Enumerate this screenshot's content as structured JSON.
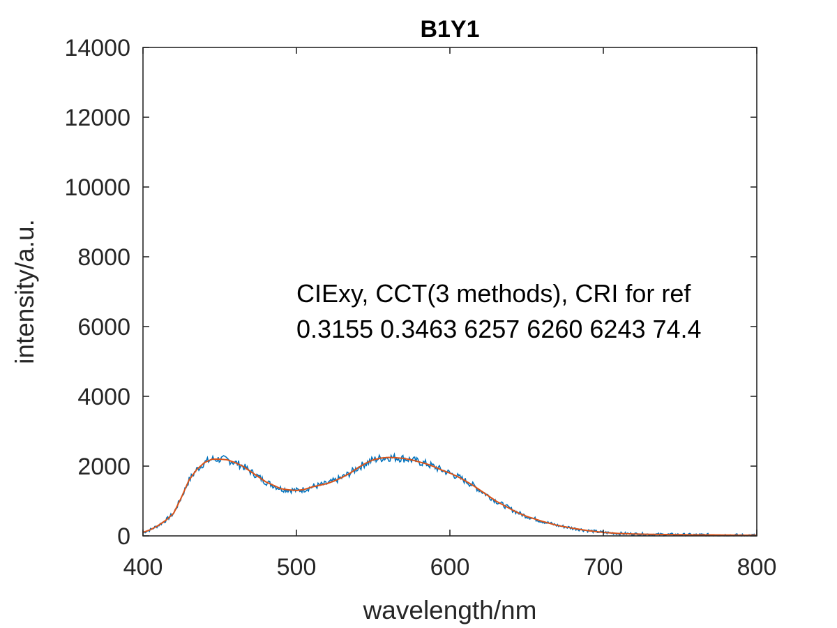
{
  "chart_data": {
    "type": "line",
    "title": "B1Y1",
    "xlabel": "wavelength/nm",
    "ylabel": "intensity/a.u.",
    "xlim": [
      400,
      800
    ],
    "ylim": [
      0,
      14000
    ],
    "xticks": [
      "400",
      "500",
      "600",
      "700",
      "800"
    ],
    "yticks": [
      "0",
      "2000",
      "4000",
      "6000",
      "8000",
      "10000",
      "12000",
      "14000"
    ],
    "grid": false,
    "annotation": {
      "line1": "CIExy, CCT(3 methods), CRI for ref",
      "line2": "0.3155 0.3463 6257 6260 6243 74.4"
    },
    "series": [
      {
        "color": "#0072BD",
        "style": "noisy",
        "x": [
          400,
          405,
          410,
          415,
          420,
          425,
          430,
          435,
          440,
          445,
          450,
          455,
          460,
          465,
          470,
          475,
          480,
          485,
          490,
          495,
          500,
          505,
          510,
          515,
          520,
          525,
          530,
          535,
          540,
          545,
          550,
          555,
          560,
          565,
          570,
          575,
          580,
          585,
          590,
          595,
          600,
          605,
          610,
          615,
          620,
          625,
          630,
          635,
          640,
          645,
          650,
          660,
          670,
          680,
          690,
          700,
          710,
          720,
          730,
          740,
          750,
          760,
          770,
          780,
          790,
          800
        ],
        "y": [
          100,
          180,
          300,
          450,
          650,
          1100,
          1600,
          1900,
          2100,
          2200,
          2200,
          2180,
          2100,
          2000,
          1850,
          1700,
          1550,
          1450,
          1350,
          1320,
          1300,
          1330,
          1400,
          1450,
          1500,
          1580,
          1680,
          1800,
          1950,
          2080,
          2180,
          2230,
          2250,
          2240,
          2220,
          2180,
          2120,
          2060,
          1980,
          1880,
          1800,
          1700,
          1580,
          1450,
          1300,
          1150,
          1000,
          880,
          760,
          650,
          560,
          420,
          300,
          220,
          150,
          100,
          70,
          55,
          45,
          40,
          35,
          30,
          30,
          25,
          20,
          20
        ]
      },
      {
        "color": "#D95319",
        "style": "smooth",
        "x": [
          400,
          405,
          410,
          415,
          420,
          425,
          430,
          435,
          440,
          445,
          450,
          455,
          460,
          465,
          470,
          475,
          480,
          485,
          490,
          495,
          500,
          505,
          510,
          515,
          520,
          525,
          530,
          535,
          540,
          545,
          550,
          555,
          560,
          565,
          570,
          575,
          580,
          585,
          590,
          595,
          600,
          605,
          610,
          615,
          620,
          625,
          630,
          635,
          640,
          645,
          650,
          660,
          670,
          680,
          690,
          700,
          710,
          720,
          730,
          740,
          750,
          760,
          770,
          780,
          790,
          800
        ],
        "y": [
          100,
          180,
          300,
          450,
          650,
          1100,
          1600,
          1900,
          2100,
          2200,
          2200,
          2180,
          2100,
          2000,
          1850,
          1700,
          1550,
          1450,
          1350,
          1320,
          1300,
          1330,
          1400,
          1450,
          1500,
          1580,
          1680,
          1800,
          1950,
          2080,
          2180,
          2230,
          2250,
          2240,
          2220,
          2180,
          2120,
          2060,
          1980,
          1880,
          1800,
          1700,
          1580,
          1450,
          1300,
          1150,
          1000,
          880,
          760,
          650,
          560,
          420,
          300,
          220,
          150,
          100,
          70,
          55,
          45,
          40,
          35,
          30,
          30,
          25,
          20,
          20
        ]
      }
    ]
  }
}
